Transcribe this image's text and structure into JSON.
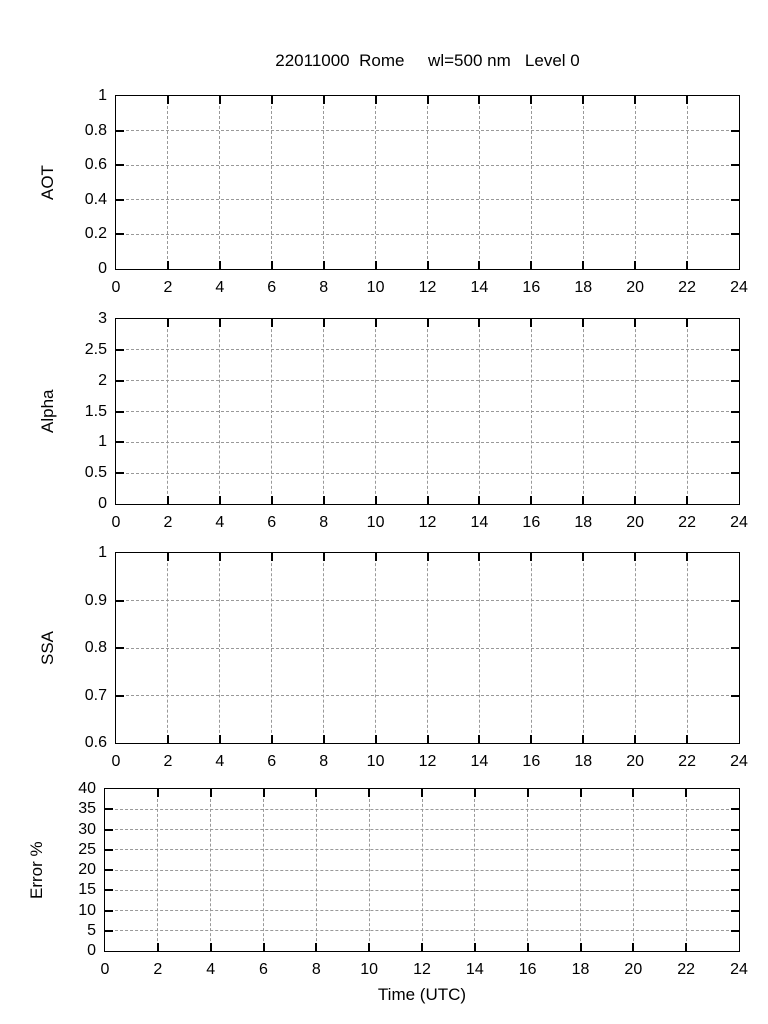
{
  "colors": {
    "axis": "#000000",
    "grid": "#999999",
    "background": "#ffffff",
    "text": "#000000"
  },
  "chart_data": [
    {
      "type": "line",
      "title": "22011000  Rome     wl=500 nm   Level 0",
      "ylabel": "AOT",
      "xlabel": "",
      "xlim": [
        0,
        24
      ],
      "ylim": [
        0,
        1
      ],
      "xticks": [
        0,
        2,
        4,
        6,
        8,
        10,
        12,
        14,
        16,
        18,
        20,
        22,
        24
      ],
      "yticks": [
        0,
        0.2,
        0.4,
        0.6,
        0.8,
        1
      ],
      "grid": true,
      "legend": false,
      "series": []
    },
    {
      "type": "line",
      "title": "",
      "ylabel": "Alpha",
      "xlabel": "",
      "xlim": [
        0,
        24
      ],
      "ylim": [
        0,
        3
      ],
      "xticks": [
        0,
        2,
        4,
        6,
        8,
        10,
        12,
        14,
        16,
        18,
        20,
        22,
        24
      ],
      "yticks": [
        0,
        0.5,
        1,
        1.5,
        2,
        2.5,
        3
      ],
      "grid": true,
      "legend": false,
      "series": []
    },
    {
      "type": "line",
      "title": "",
      "ylabel": "SSA",
      "xlabel": "",
      "xlim": [
        0,
        24
      ],
      "ylim": [
        0.6,
        1
      ],
      "xticks": [
        0,
        2,
        4,
        6,
        8,
        10,
        12,
        14,
        16,
        18,
        20,
        22,
        24
      ],
      "yticks": [
        0.6,
        0.7,
        0.8,
        0.9,
        1
      ],
      "grid": true,
      "legend": false,
      "series": []
    },
    {
      "type": "line",
      "title": "",
      "ylabel": "Error %",
      "xlabel": "Time (UTC)",
      "xlim": [
        0,
        24
      ],
      "ylim": [
        0,
        40
      ],
      "xticks": [
        0,
        2,
        4,
        6,
        8,
        10,
        12,
        14,
        16,
        18,
        20,
        22,
        24
      ],
      "yticks": [
        0,
        5,
        10,
        15,
        20,
        25,
        30,
        35,
        40
      ],
      "grid": true,
      "legend": false,
      "series": []
    }
  ]
}
